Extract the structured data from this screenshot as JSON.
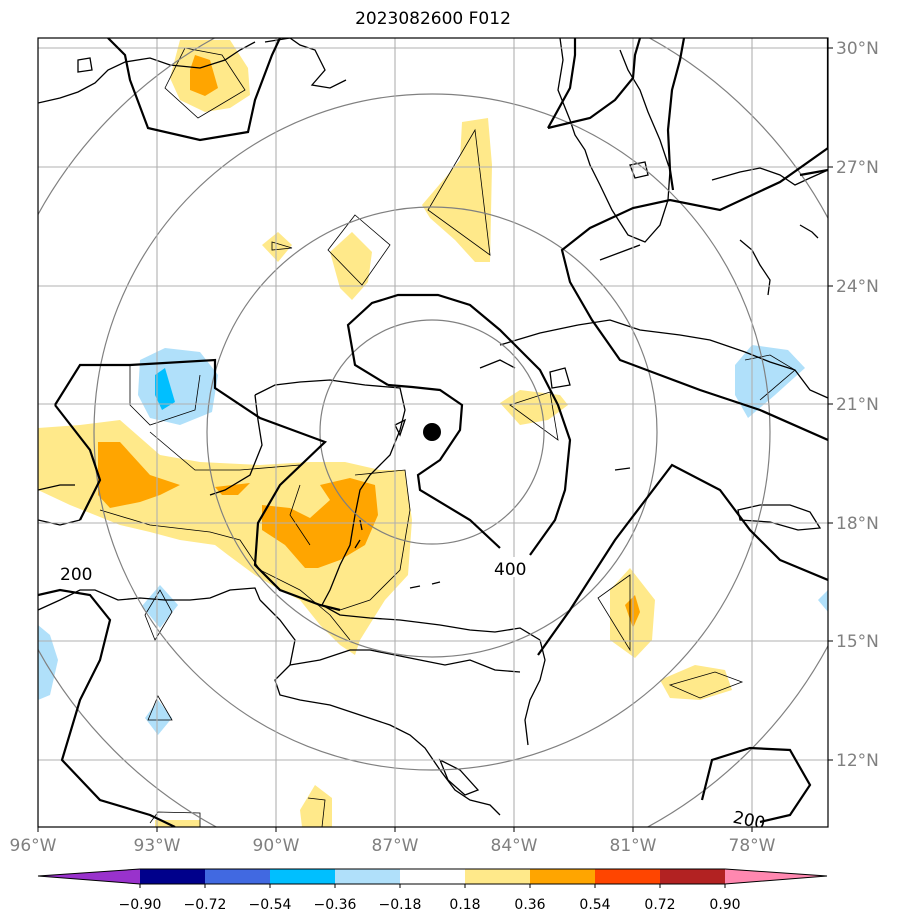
{
  "title": "2023082600 F012",
  "map": {
    "lon_labels": [
      "96°W",
      "93°W",
      "90°W",
      "87°W",
      "84°W",
      "81°W",
      "78°W"
    ],
    "lat_labels": [
      "30°N",
      "27°N",
      "24°N",
      "21°N",
      "18°N",
      "15°N",
      "12°N"
    ],
    "contour_labels": [
      "200",
      "400",
      "200"
    ],
    "center_marker": {
      "lon": -85.9,
      "lat": 20.3
    }
  },
  "colorbar": {
    "ticks": [
      "−0.90",
      "−0.72",
      "−0.54",
      "−0.36",
      "−0.18",
      "0.18",
      "0.36",
      "0.54",
      "0.72",
      "0.90"
    ],
    "colors": [
      "#9932cc",
      "#00008b",
      "#4169e1",
      "#00bfff",
      "#b0e0fa",
      "#ffffff",
      "#ffe98a",
      "#ffa500",
      "#ff4500",
      "#b22222",
      "#ff88b0"
    ]
  }
}
